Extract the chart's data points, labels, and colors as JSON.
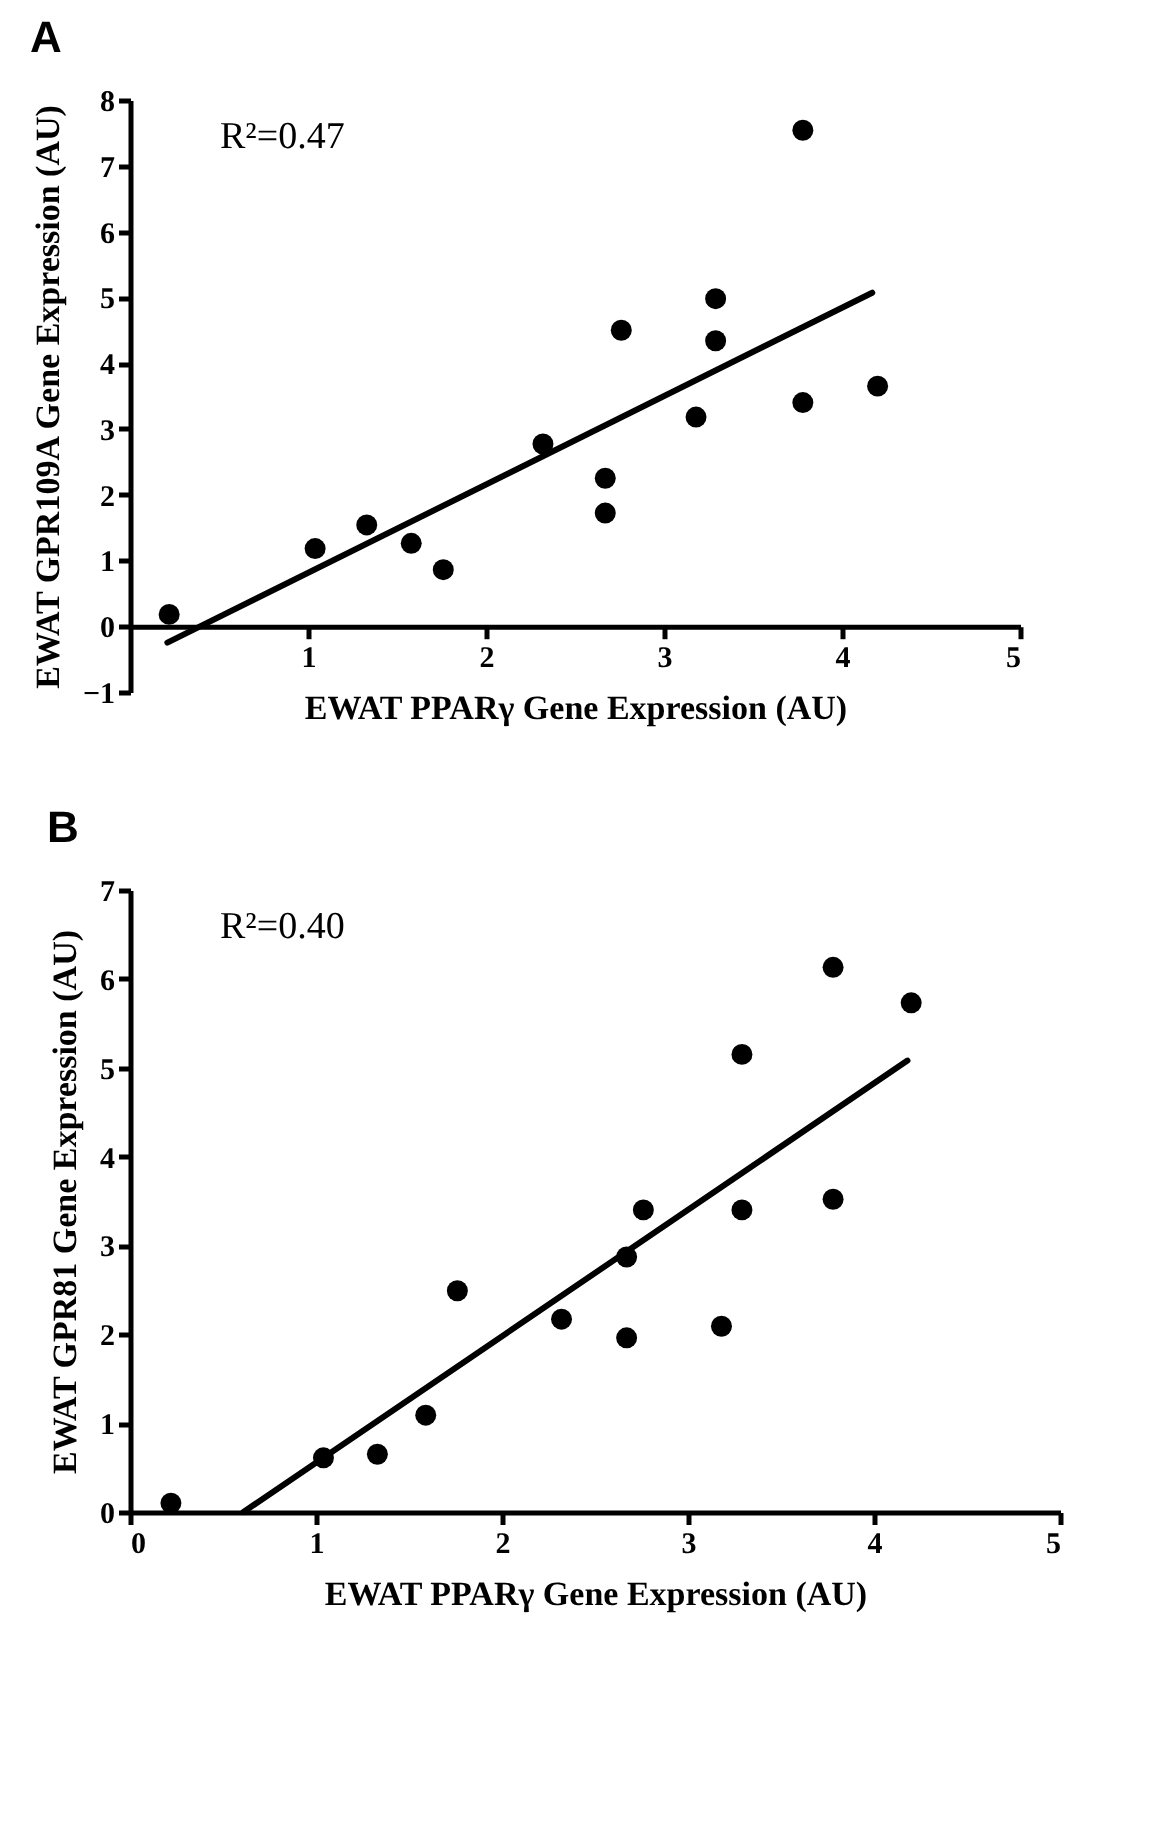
{
  "chart_data": [
    {
      "type": "scatter",
      "title": "A",
      "xlabel": "EWAT PPARγ Gene Expression (AU)",
      "ylabel": "EWAT GPR109A Gene Expression  (AU)",
      "annotations": [
        "R²=0.47"
      ],
      "xlim": [
        0,
        5
      ],
      "xticks": [
        1,
        2,
        3,
        4,
        5
      ],
      "ylim": [
        -1,
        8
      ],
      "yticks": [
        -1,
        0,
        1,
        2,
        3,
        4,
        5,
        6,
        7,
        8
      ],
      "marker": "circle",
      "series": [
        {
          "color": "#000000",
          "x": [
            0.22,
            1.04,
            1.33,
            1.58,
            1.76,
            2.32,
            2.67,
            2.67,
            2.76,
            3.18,
            3.29,
            3.29,
            3.78,
            3.78,
            4.2
          ],
          "values": [
            0.18,
            1.18,
            1.54,
            1.26,
            0.86,
            2.77,
            2.25,
            1.72,
            4.5,
            3.18,
            4.98,
            4.34,
            7.54,
            3.4,
            3.65
          ]
        },
        {
          "type": "line",
          "color": "#000000",
          "marker": "none",
          "line_style": "solid",
          "x": [
            0.21,
            4.17
          ],
          "values": [
            -0.25,
            5.07
          ]
        }
      ]
    },
    {
      "type": "scatter",
      "title": "B",
      "xlabel": "EWAT PPARγ Gene Expression (AU)",
      "ylabel": "EWAT GPR81 Gene Expression  (AU)",
      "annotations": [
        "R²=0.40"
      ],
      "xlim": [
        0,
        5
      ],
      "xticks": [
        0,
        1,
        2,
        3,
        4,
        5
      ],
      "ylim": [
        0,
        7
      ],
      "yticks": [
        0,
        1,
        2,
        3,
        4,
        5,
        6,
        7
      ],
      "marker": "circle",
      "series": [
        {
          "color": "#000000",
          "x": [
            0.22,
            1.04,
            1.33,
            1.59,
            1.76,
            2.32,
            2.67,
            2.67,
            2.76,
            3.18,
            3.29,
            3.29,
            3.78,
            3.78,
            4.2
          ],
          "values": [
            0.1,
            0.61,
            0.65,
            1.09,
            2.49,
            2.17,
            1.96,
            2.87,
            3.4,
            2.09,
            5.15,
            3.4,
            6.13,
            3.52,
            5.73
          ]
        },
        {
          "type": "line",
          "color": "#000000",
          "marker": "none",
          "line_style": "solid",
          "x": [
            0.61,
            4.18
          ],
          "values": [
            0,
            5.08
          ]
        }
      ]
    }
  ]
}
